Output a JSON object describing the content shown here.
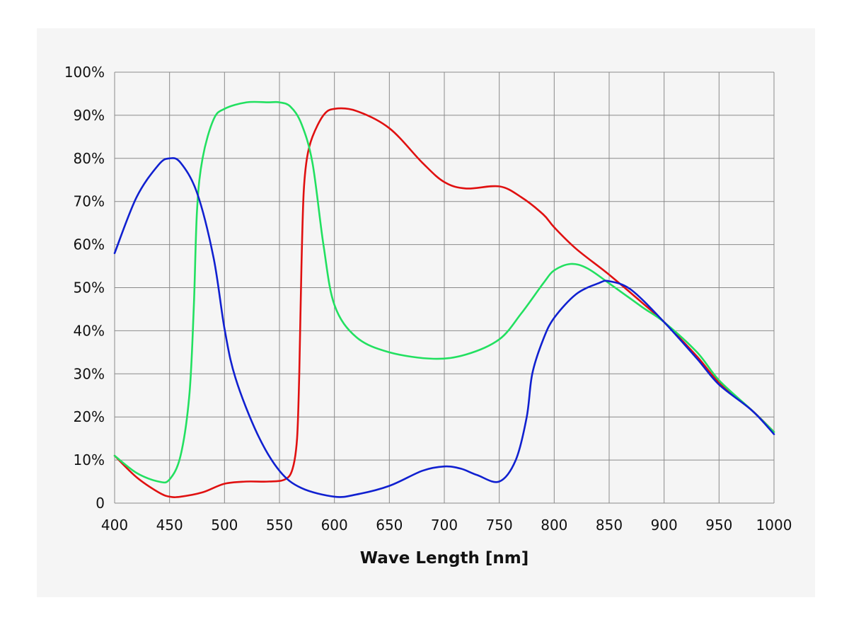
{
  "chart_data": {
    "type": "line",
    "title": "",
    "xlabel": "Wave Length [nm]",
    "ylabel": "",
    "xlim": [
      400,
      1000
    ],
    "ylim": [
      0,
      100
    ],
    "grid": true,
    "legend": "none",
    "x_ticks": [
      "400",
      "450",
      "500",
      "550",
      "600",
      "650",
      "700",
      "750",
      "800",
      "850",
      "900",
      "950",
      "1000"
    ],
    "y_ticks": [
      "0",
      "10%",
      "20%",
      "30%",
      "40%",
      "50%",
      "60%",
      "70%",
      "80%",
      "90%",
      "100%"
    ],
    "series": [
      {
        "color": "#e01010",
        "x": [
          400,
          420,
          440,
          450,
          460,
          480,
          500,
          520,
          540,
          555,
          562,
          566,
          568,
          570,
          572,
          575,
          580,
          590,
          600,
          620,
          650,
          680,
          700,
          720,
          750,
          770,
          790,
          800,
          820,
          850,
          880,
          900,
          930,
          950,
          980,
          1000
        ],
        "y": [
          11,
          6,
          2.5,
          1.5,
          1.5,
          2.5,
          4.5,
          5,
          5,
          5.5,
          8,
          15,
          30,
          55,
          72,
          80,
          85,
          90,
          91.5,
          91,
          87,
          79,
          74.5,
          73,
          73.5,
          71,
          67,
          64,
          59,
          53,
          46.5,
          42,
          34,
          28,
          21.5,
          16.5
        ]
      },
      {
        "color": "#22e060",
        "x": [
          400,
          420,
          440,
          450,
          460,
          468,
          472,
          475,
          480,
          490,
          500,
          520,
          540,
          550,
          560,
          570,
          580,
          590,
          600,
          620,
          650,
          690,
          720,
          750,
          770,
          790,
          800,
          815,
          830,
          850,
          880,
          900,
          930,
          950,
          980,
          1000
        ],
        "y": [
          11,
          7,
          5,
          5.5,
          11,
          25,
          45,
          68,
          80,
          89,
          91.5,
          93,
          93,
          93,
          92,
          88,
          79,
          60,
          46,
          38.5,
          35,
          33.5,
          34.5,
          38,
          44,
          51,
          54,
          55.5,
          54.5,
          51,
          45.5,
          42,
          35,
          28.5,
          21.5,
          16.5
        ]
      },
      {
        "color": "#1020d0",
        "x": [
          400,
          420,
          440,
          450,
          460,
          475,
          490,
          500,
          510,
          530,
          550,
          570,
          600,
          620,
          650,
          680,
          700,
          715,
          730,
          750,
          765,
          775,
          780,
          790,
          800,
          820,
          840,
          850,
          870,
          900,
          930,
          950,
          980,
          1000
        ],
        "y": [
          58,
          71,
          78.5,
          80,
          79,
          72,
          57,
          40.5,
          29,
          16,
          7.5,
          3.5,
          1.5,
          2,
          4,
          7.5,
          8.5,
          8,
          6.5,
          5,
          10,
          20,
          30,
          38,
          43,
          48.5,
          51,
          51.5,
          49.5,
          42,
          33.5,
          27.5,
          21.5,
          16
        ]
      }
    ]
  }
}
